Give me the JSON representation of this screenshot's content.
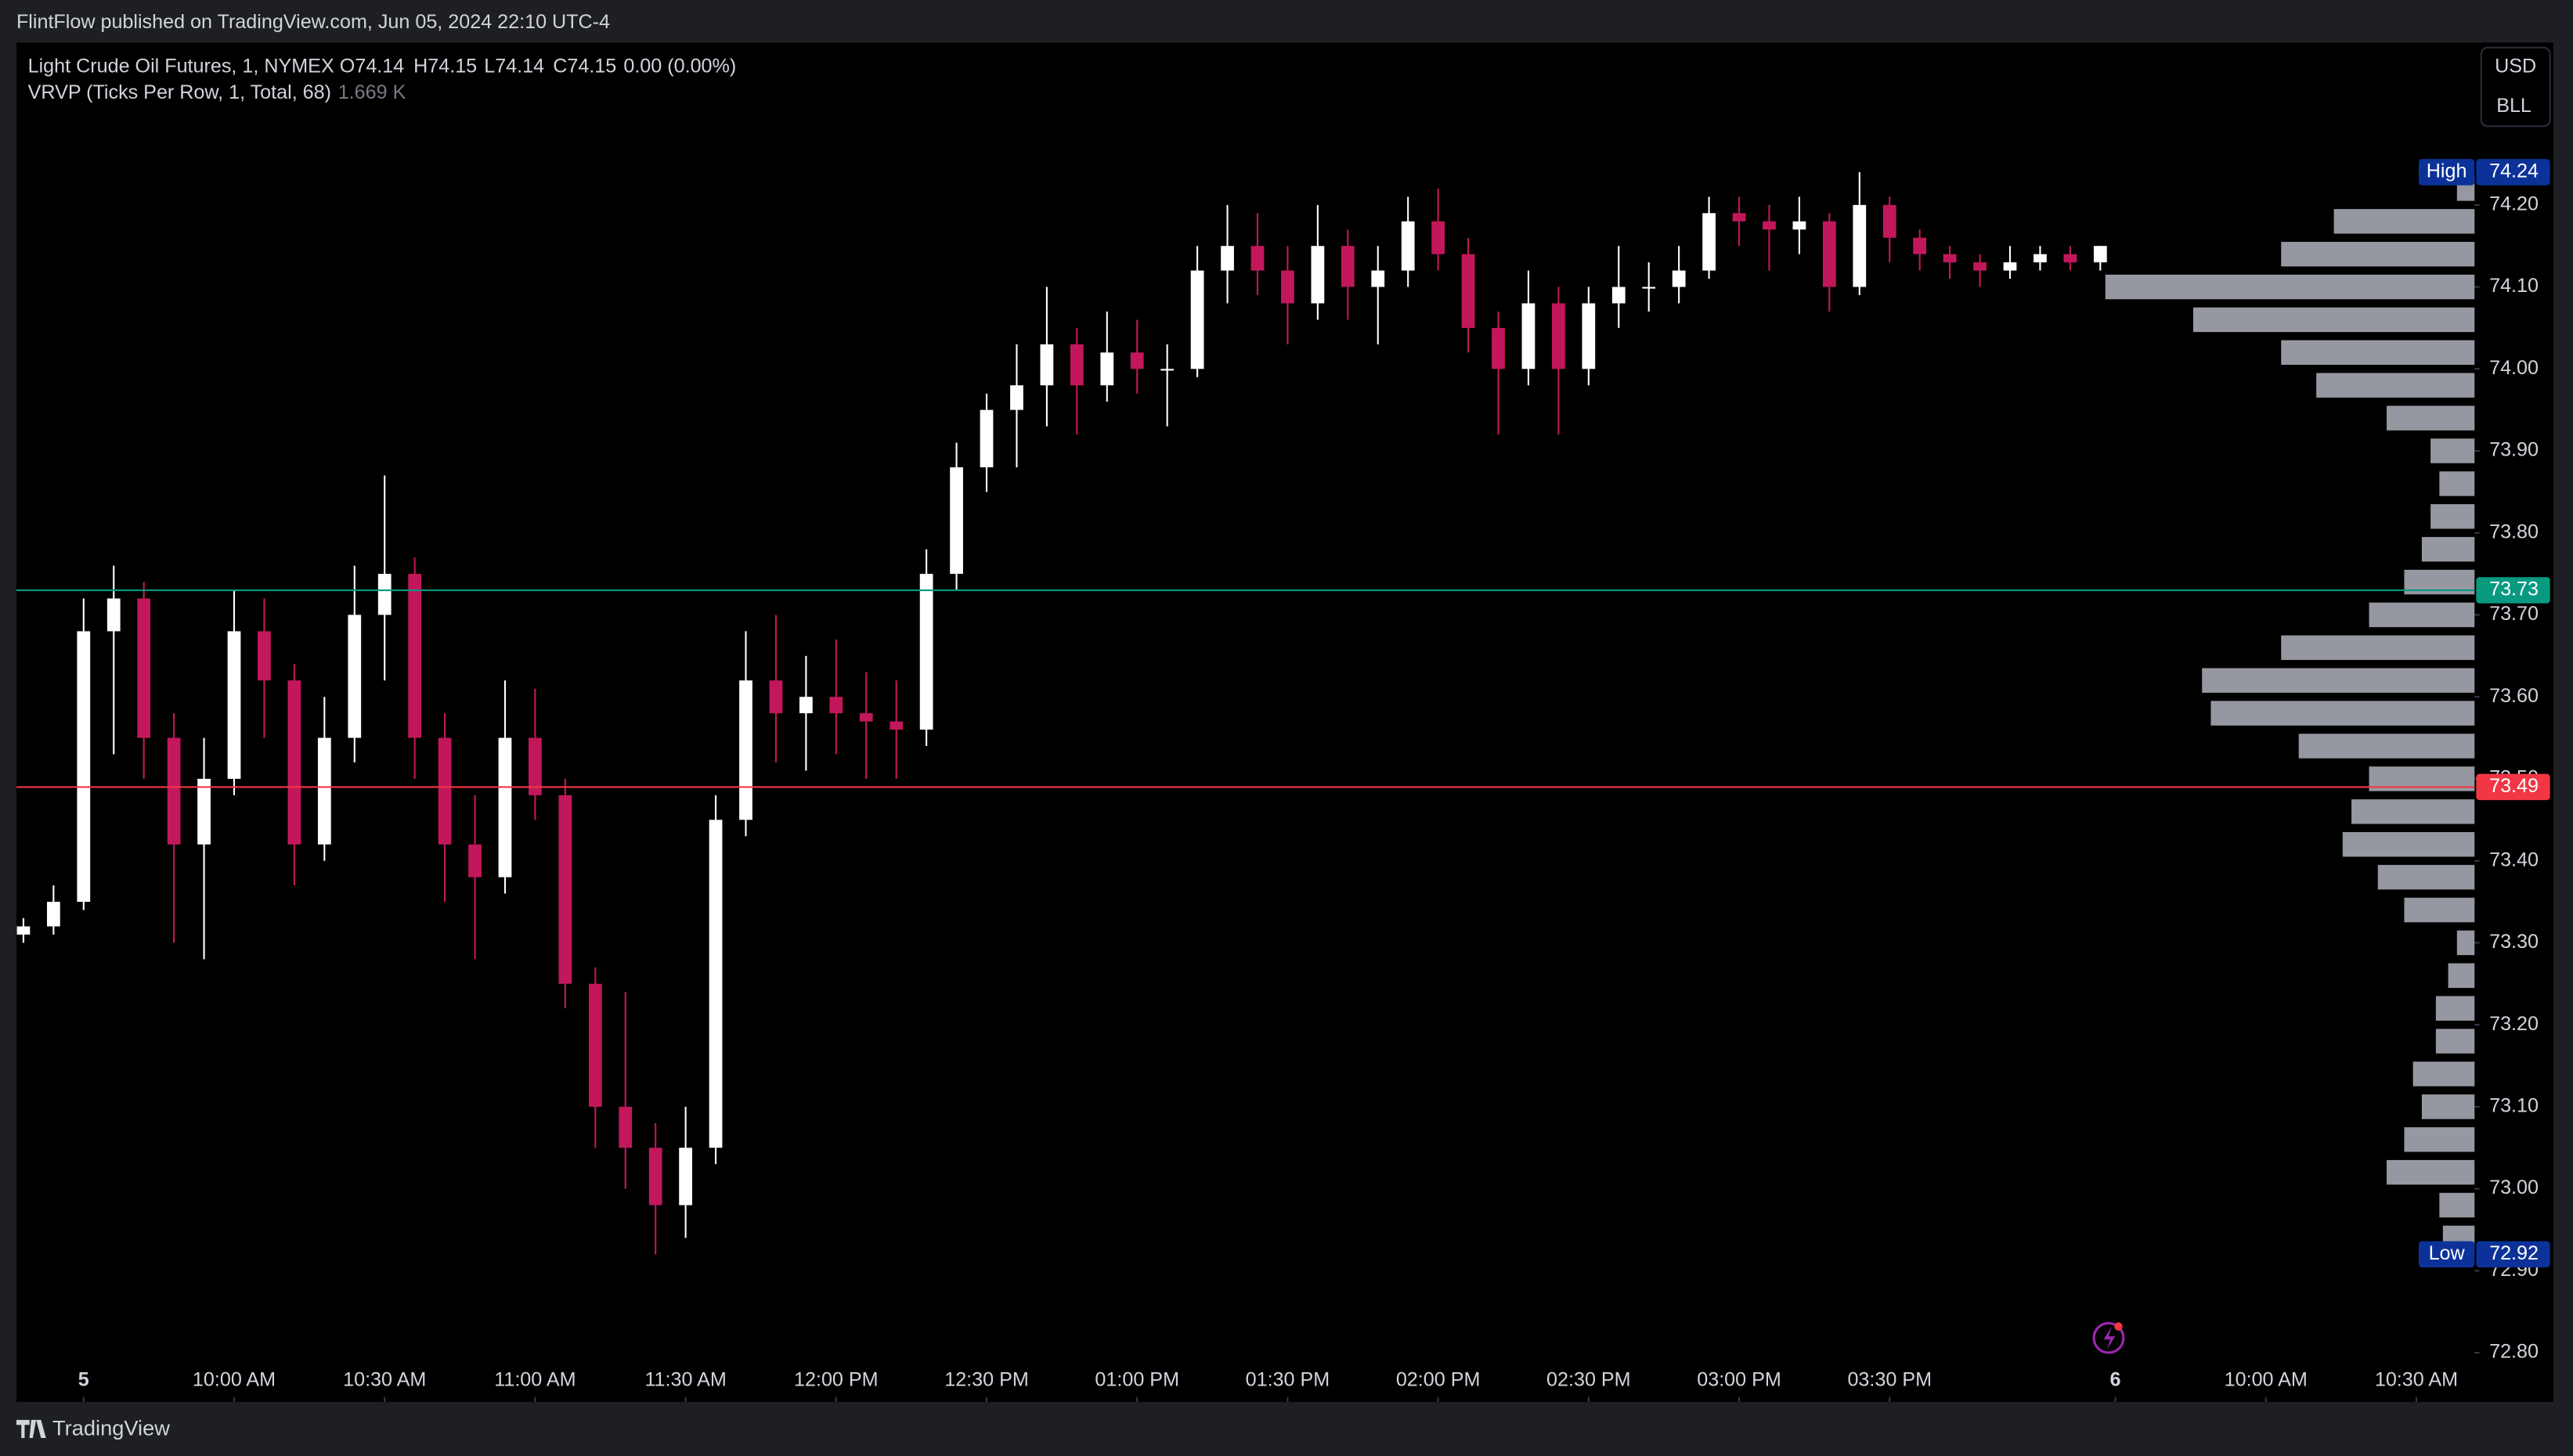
{
  "header": {
    "publisher": "FlintFlow published on TradingView.com, Jun 05, 2024 22:10 UTC-4",
    "brand": "TradingView"
  },
  "chart_data": {
    "type": "candlestick",
    "legend": {
      "title": "Light Crude Oil Futures, 1, NYMEX",
      "ohlc": [
        "O74.14",
        "H74.15",
        "L74.14",
        "C74.15"
      ],
      "change": "0.00 (0.00%)",
      "indicator": "VRVP (Ticks Per Row, 1, Total, 68)",
      "indicator_value": "1.669 K"
    },
    "buttons": [
      "USD",
      "BLL"
    ],
    "up_color": "#ffffff",
    "down_color": "#c2185b",
    "x": [
      -12,
      -6,
      0,
      6,
      12,
      18,
      24,
      30,
      36,
      42,
      48,
      54,
      60,
      66,
      72,
      78,
      84,
      90,
      96,
      102,
      108,
      114,
      120,
      126,
      132,
      138,
      144,
      150,
      156,
      162,
      168,
      174,
      180,
      186,
      192,
      198,
      204,
      210,
      216,
      222,
      228,
      234,
      240,
      246,
      252,
      258,
      264,
      270,
      276,
      282,
      288,
      294,
      300,
      306,
      312,
      318,
      324,
      330,
      336,
      342,
      348,
      354,
      360,
      366,
      372,
      378,
      384,
      390,
      396,
      402
    ],
    "open": [
      73.31,
      73.32,
      73.35,
      73.68,
      73.72,
      73.55,
      73.42,
      73.5,
      73.68,
      73.62,
      73.42,
      73.55,
      73.7,
      73.75,
      73.55,
      73.42,
      73.38,
      73.55,
      73.48,
      73.25,
      73.1,
      73.05,
      72.98,
      73.05,
      73.45,
      73.62,
      73.58,
      73.6,
      73.58,
      73.57,
      73.56,
      73.75,
      73.88,
      73.95,
      73.98,
      74.03,
      73.98,
      74.02,
      74.0,
      74.0,
      74.12,
      74.15,
      74.12,
      74.08,
      74.15,
      74.1,
      74.12,
      74.18,
      74.14,
      74.05,
      74.0,
      74.08,
      74.0,
      74.08,
      74.1,
      74.1,
      74.12,
      74.19,
      74.18,
      74.17,
      74.18,
      74.1,
      74.2,
      74.16,
      74.14,
      74.13,
      74.12,
      74.13,
      74.14,
      74.13
    ],
    "high": [
      73.33,
      73.37,
      73.72,
      73.76,
      73.74,
      73.58,
      73.55,
      73.73,
      73.72,
      73.64,
      73.6,
      73.76,
      73.87,
      73.77,
      73.58,
      73.48,
      73.62,
      73.61,
      73.5,
      73.27,
      73.24,
      73.08,
      73.1,
      73.48,
      73.68,
      73.7,
      73.65,
      73.67,
      73.63,
      73.62,
      73.78,
      73.91,
      73.97,
      74.03,
      74.1,
      74.05,
      74.07,
      74.06,
      74.03,
      74.15,
      74.2,
      74.19,
      74.15,
      74.2,
      74.17,
      74.15,
      74.21,
      74.22,
      74.16,
      74.07,
      74.12,
      74.1,
      74.1,
      74.15,
      74.13,
      74.15,
      74.21,
      74.21,
      74.2,
      74.21,
      74.19,
      74.24,
      74.21,
      74.17,
      74.15,
      74.14,
      74.15,
      74.15,
      74.15,
      74.15
    ],
    "low": [
      73.3,
      73.31,
      73.34,
      73.53,
      73.5,
      73.3,
      73.28,
      73.48,
      73.55,
      73.37,
      73.4,
      73.52,
      73.62,
      73.5,
      73.35,
      73.28,
      73.36,
      73.45,
      73.22,
      73.05,
      73.0,
      72.92,
      72.94,
      73.03,
      73.43,
      73.52,
      73.51,
      73.53,
      73.5,
      73.5,
      73.54,
      73.73,
      73.85,
      73.88,
      73.93,
      73.92,
      73.96,
      73.97,
      73.93,
      73.99,
      74.08,
      74.09,
      74.03,
      74.06,
      74.06,
      74.03,
      74.1,
      74.12,
      74.02,
      73.92,
      73.98,
      73.92,
      73.98,
      74.05,
      74.07,
      74.08,
      74.11,
      74.15,
      74.12,
      74.14,
      74.07,
      74.09,
      74.13,
      74.12,
      74.11,
      74.1,
      74.11,
      74.12,
      74.12,
      74.12
    ],
    "close": [
      73.32,
      73.35,
      73.68,
      73.72,
      73.55,
      73.42,
      73.5,
      73.68,
      73.62,
      73.42,
      73.55,
      73.7,
      73.75,
      73.55,
      73.42,
      73.38,
      73.55,
      73.48,
      73.25,
      73.1,
      73.05,
      72.98,
      73.05,
      73.45,
      73.62,
      73.58,
      73.6,
      73.58,
      73.57,
      73.56,
      73.75,
      73.88,
      73.95,
      73.98,
      74.03,
      73.98,
      74.02,
      74.0,
      74.0,
      74.12,
      74.15,
      74.12,
      74.08,
      74.15,
      74.1,
      74.12,
      74.18,
      74.14,
      74.05,
      74.0,
      74.08,
      74.0,
      74.08,
      74.1,
      74.1,
      74.12,
      74.19,
      74.18,
      74.17,
      74.18,
      74.1,
      74.2,
      74.16,
      74.14,
      74.13,
      74.12,
      74.13,
      74.14,
      74.13,
      74.15
    ],
    "xlim": [
      -13.4,
      476.6
    ],
    "xticks": [
      {
        "value": 0,
        "label": "5"
      },
      {
        "value": 30,
        "label": "10:00 AM"
      },
      {
        "value": 60,
        "label": "10:30 AM"
      },
      {
        "value": 90,
        "label": "11:00 AM"
      },
      {
        "value": 120,
        "label": "11:30 AM"
      },
      {
        "value": 150,
        "label": "12:00 PM"
      },
      {
        "value": 180,
        "label": "12:30 PM"
      },
      {
        "value": 210,
        "label": "01:00 PM"
      },
      {
        "value": 240,
        "label": "01:30 PM"
      },
      {
        "value": 270,
        "label": "02:00 PM"
      },
      {
        "value": 300,
        "label": "02:30 PM"
      },
      {
        "value": 330,
        "label": "03:00 PM"
      },
      {
        "value": 360,
        "label": "03:30 PM"
      },
      {
        "value": 405,
        "label": "6"
      },
      {
        "value": 435,
        "label": "10:00 AM"
      },
      {
        "value": 465,
        "label": "10:30 AM"
      }
    ],
    "ylim": [
      72.74,
      74.398
    ],
    "yticks": [
      {
        "value": 72.8,
        "label": "72.80"
      },
      {
        "value": 72.9,
        "label": "72.90"
      },
      {
        "value": 73,
        "label": "73.00"
      },
      {
        "value": 73.1,
        "label": "73.10"
      },
      {
        "value": 73.2,
        "label": "73.20"
      },
      {
        "value": 73.3,
        "label": "73.30"
      },
      {
        "value": 73.4,
        "label": "73.40"
      },
      {
        "value": 73.5,
        "label": "73.50"
      },
      {
        "value": 73.6,
        "label": "73.60"
      },
      {
        "value": 73.7,
        "label": "73.70"
      },
      {
        "value": 73.8,
        "label": "73.80"
      },
      {
        "value": 73.9,
        "label": "73.90"
      },
      {
        "value": 74,
        "label": "74.00"
      },
      {
        "value": 74.1,
        "label": "74.10"
      },
      {
        "value": 74.2,
        "label": "74.20"
      }
    ],
    "lines": [
      {
        "value": 73.73,
        "color": "#089981"
      },
      {
        "value": 73.49,
        "color": "#f23645"
      }
    ],
    "extremes": [
      {
        "label": "High",
        "value": 74.24
      },
      {
        "label": "Low",
        "value": 72.92
      }
    ],
    "profile": {
      "color": "#9598a1",
      "prices": [
        72.94,
        72.98,
        73.02,
        73.06,
        73.1,
        73.14,
        73.18,
        73.22,
        73.26,
        73.3,
        73.34,
        73.38,
        73.42,
        73.46,
        73.5,
        73.54,
        73.58,
        73.62,
        73.66,
        73.7,
        73.74,
        73.78,
        73.82,
        73.86,
        73.9,
        73.94,
        73.98,
        74.02,
        74.06,
        74.1,
        74.14,
        74.18,
        74.22
      ],
      "values": [
        18,
        20,
        50,
        40,
        30,
        35,
        22,
        22,
        15,
        10,
        40,
        55,
        75,
        70,
        60,
        100,
        150,
        155,
        110,
        60,
        40,
        30,
        25,
        20,
        25,
        50,
        90,
        110,
        160,
        210,
        110,
        80,
        10
      ]
    }
  }
}
